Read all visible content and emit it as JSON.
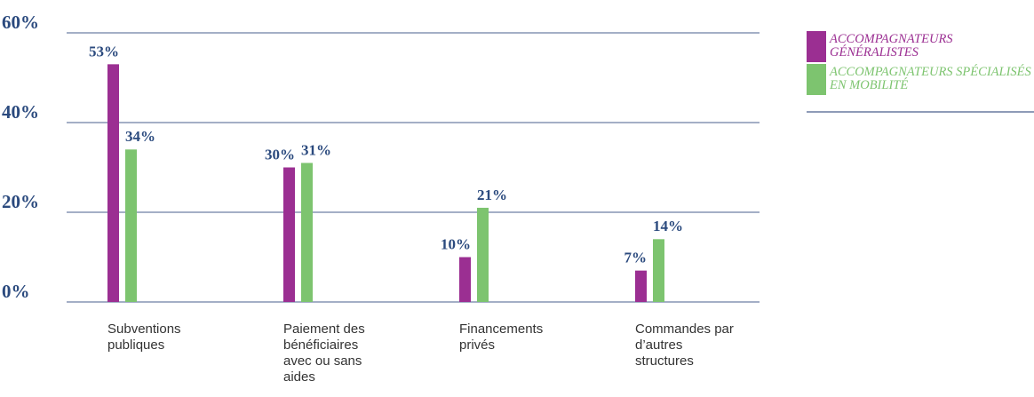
{
  "chart_data": {
    "type": "bar",
    "categories": [
      "Subventions publiques",
      "Paiement des bénéficiaires avec ou sans aides",
      "Financements privés",
      "Commandes par d’autres structures"
    ],
    "series": [
      {
        "name": "ACCOMPAGNATEURS GÉNÉRALISTES",
        "color": "#9b2f92",
        "values": [
          53,
          30,
          10,
          7
        ],
        "value_labels": [
          "53%",
          "30%",
          "10%",
          "7%"
        ]
      },
      {
        "name": "ACCOMPAGNATEURS SPÉCIALISÉS EN MOBILITÉ",
        "color": "#7dc46f",
        "values": [
          34,
          31,
          21,
          14
        ],
        "value_labels": [
          "34%",
          "31%",
          "21%",
          "14%"
        ]
      }
    ],
    "ylim": [
      0,
      60
    ],
    "yticks": [
      {
        "value": 0,
        "label": "0%"
      },
      {
        "value": 20,
        "label": "20%"
      },
      {
        "value": 40,
        "label": "40%"
      },
      {
        "value": 60,
        "label": "60%"
      }
    ],
    "grid": true,
    "legend": "top-right"
  }
}
